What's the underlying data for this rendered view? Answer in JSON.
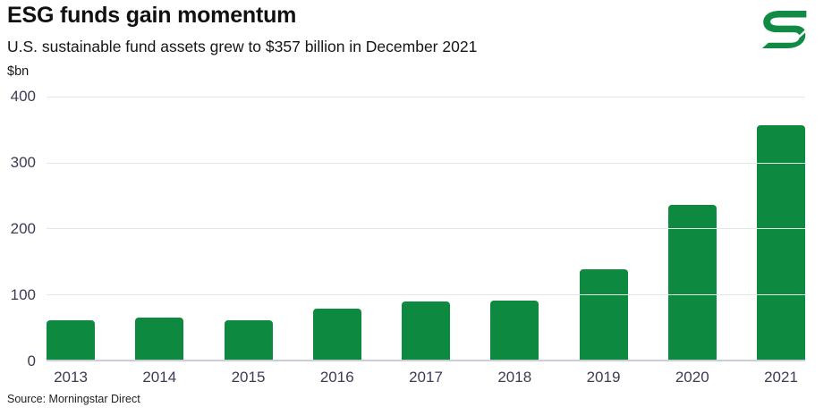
{
  "header": {
    "title": "ESG funds gain momentum",
    "subtitle": "U.S. sustainable fund assets grew to $357 billion in December 2021",
    "unit_label": "$bn",
    "logo_icon": "stylized-s-logo"
  },
  "source_note": "Source: Morningstar Direct",
  "colors": {
    "bar": "#0e8a40",
    "logo": "#108a44",
    "grid": "#e5e5ec",
    "baseline": "#cccdd6",
    "tick": "#403a54",
    "title": "#111111",
    "text": "#161616",
    "source": "#1f1f1f"
  },
  "chart_data": {
    "type": "bar",
    "title": "ESG funds gain momentum",
    "subtitle": "U.S. sustainable fund assets grew to $357 billion in December 2021",
    "ylabel": "$bn",
    "xlabel": "",
    "categories": [
      "2013",
      "2014",
      "2015",
      "2016",
      "2017",
      "2018",
      "2019",
      "2020",
      "2021"
    ],
    "values": [
      60,
      64,
      60,
      77,
      89,
      90,
      137,
      236,
      357
    ],
    "ylim": [
      0,
      400
    ],
    "yticks": [
      400,
      300,
      200,
      100,
      0
    ],
    "grid": "horizontal",
    "legend": "none",
    "bar_color": "#0e8a40",
    "source": "Source: Morningstar Direct"
  }
}
